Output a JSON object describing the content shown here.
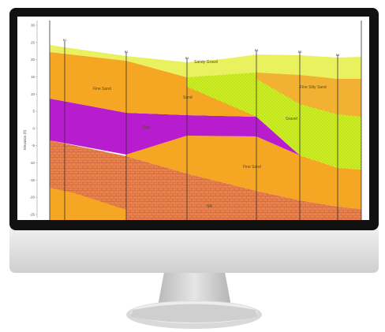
{
  "colors": {
    "bezel": "#111111",
    "chin": "#e2e2e2",
    "stand": "#c9c9c9",
    "screen_bg": "#ffffff",
    "fine_sand": "#f5a623",
    "purple_layer": "#b71ccf",
    "lime_layer": "#ccee22",
    "yellow_top": "#e9f25e",
    "hatched_base": "#e7824a",
    "hatch_lines": "#c8593a",
    "borehole": "#333333"
  },
  "monitor": {
    "screen_content": "geologic-cross-section"
  },
  "cross_section": {
    "y_axis_title": "Elevation (ft)",
    "y_ticks": [
      "30",
      "25",
      "20",
      "15",
      "10",
      "5",
      "0",
      "-5",
      "-10",
      "-15",
      "-20",
      "-25"
    ],
    "borehole_labels": [
      "B1",
      "B2",
      "B3",
      "B4",
      "B5",
      "B6"
    ],
    "layer_labels": {
      "fine_sand_left": "Fine Sand",
      "sand_upper": "Sand",
      "gravel_top": "Sandy Gravel",
      "fine_silty_sand": "Fine Silty Sand",
      "gravel_mid": "Gravel",
      "clay": "Clay",
      "fine_sand_lower": "Fine Sand",
      "silt": "Silt"
    }
  }
}
